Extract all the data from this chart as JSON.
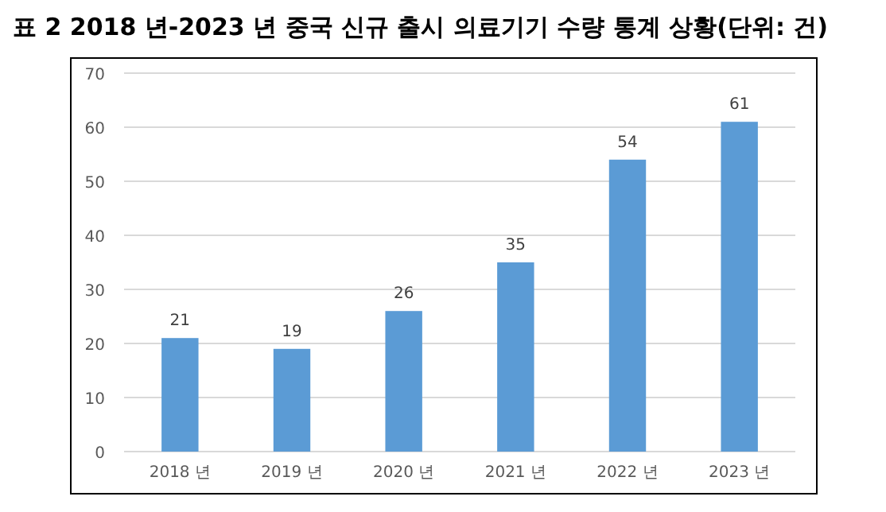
{
  "chart_data": {
    "type": "bar",
    "title": "표 2   2018 년-2023 년 중국 신규 출시 의료기기 수량 통계 상황(단위: 건)",
    "categories": [
      "2018 년",
      "2019 년",
      "2020 년",
      "2021 년",
      "2022 년",
      "2023 년"
    ],
    "values": [
      21,
      19,
      26,
      35,
      54,
      61
    ],
    "color": "#5b9bd5",
    "ylim": [
      0,
      70
    ],
    "yticks": [
      0,
      10,
      20,
      30,
      40,
      50,
      60,
      70
    ],
    "grid": "y",
    "data_labels": true
  }
}
